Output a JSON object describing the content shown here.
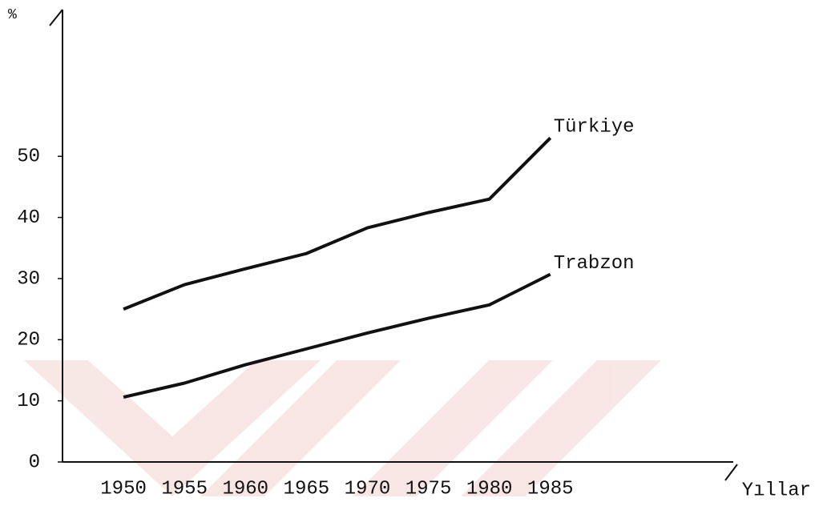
{
  "chart_data": {
    "type": "line",
    "y_label": "%",
    "x_label": "Yıllar",
    "x": [
      1950,
      1955,
      1960,
      1965,
      1970,
      1975,
      1980,
      1985
    ],
    "series": [
      {
        "name": "Türkiye",
        "color": "#111111",
        "values": [
          25,
          29,
          31.6,
          34.1,
          38.3,
          40.8,
          43,
          53
        ]
      },
      {
        "name": "Trabzon",
        "color": "#111111",
        "values": [
          10.6,
          12.9,
          15.9,
          18.5,
          21.1,
          23.5,
          25.7,
          30.7
        ]
      }
    ],
    "xlim": [
      1945,
      2000
    ],
    "xticks": [
      1950,
      1955,
      1960,
      1965,
      1970,
      1975,
      1980,
      1985
    ],
    "ylim": [
      0,
      74
    ],
    "yticks": [
      0,
      10,
      20,
      30,
      40,
      50
    ],
    "grid": false
  }
}
